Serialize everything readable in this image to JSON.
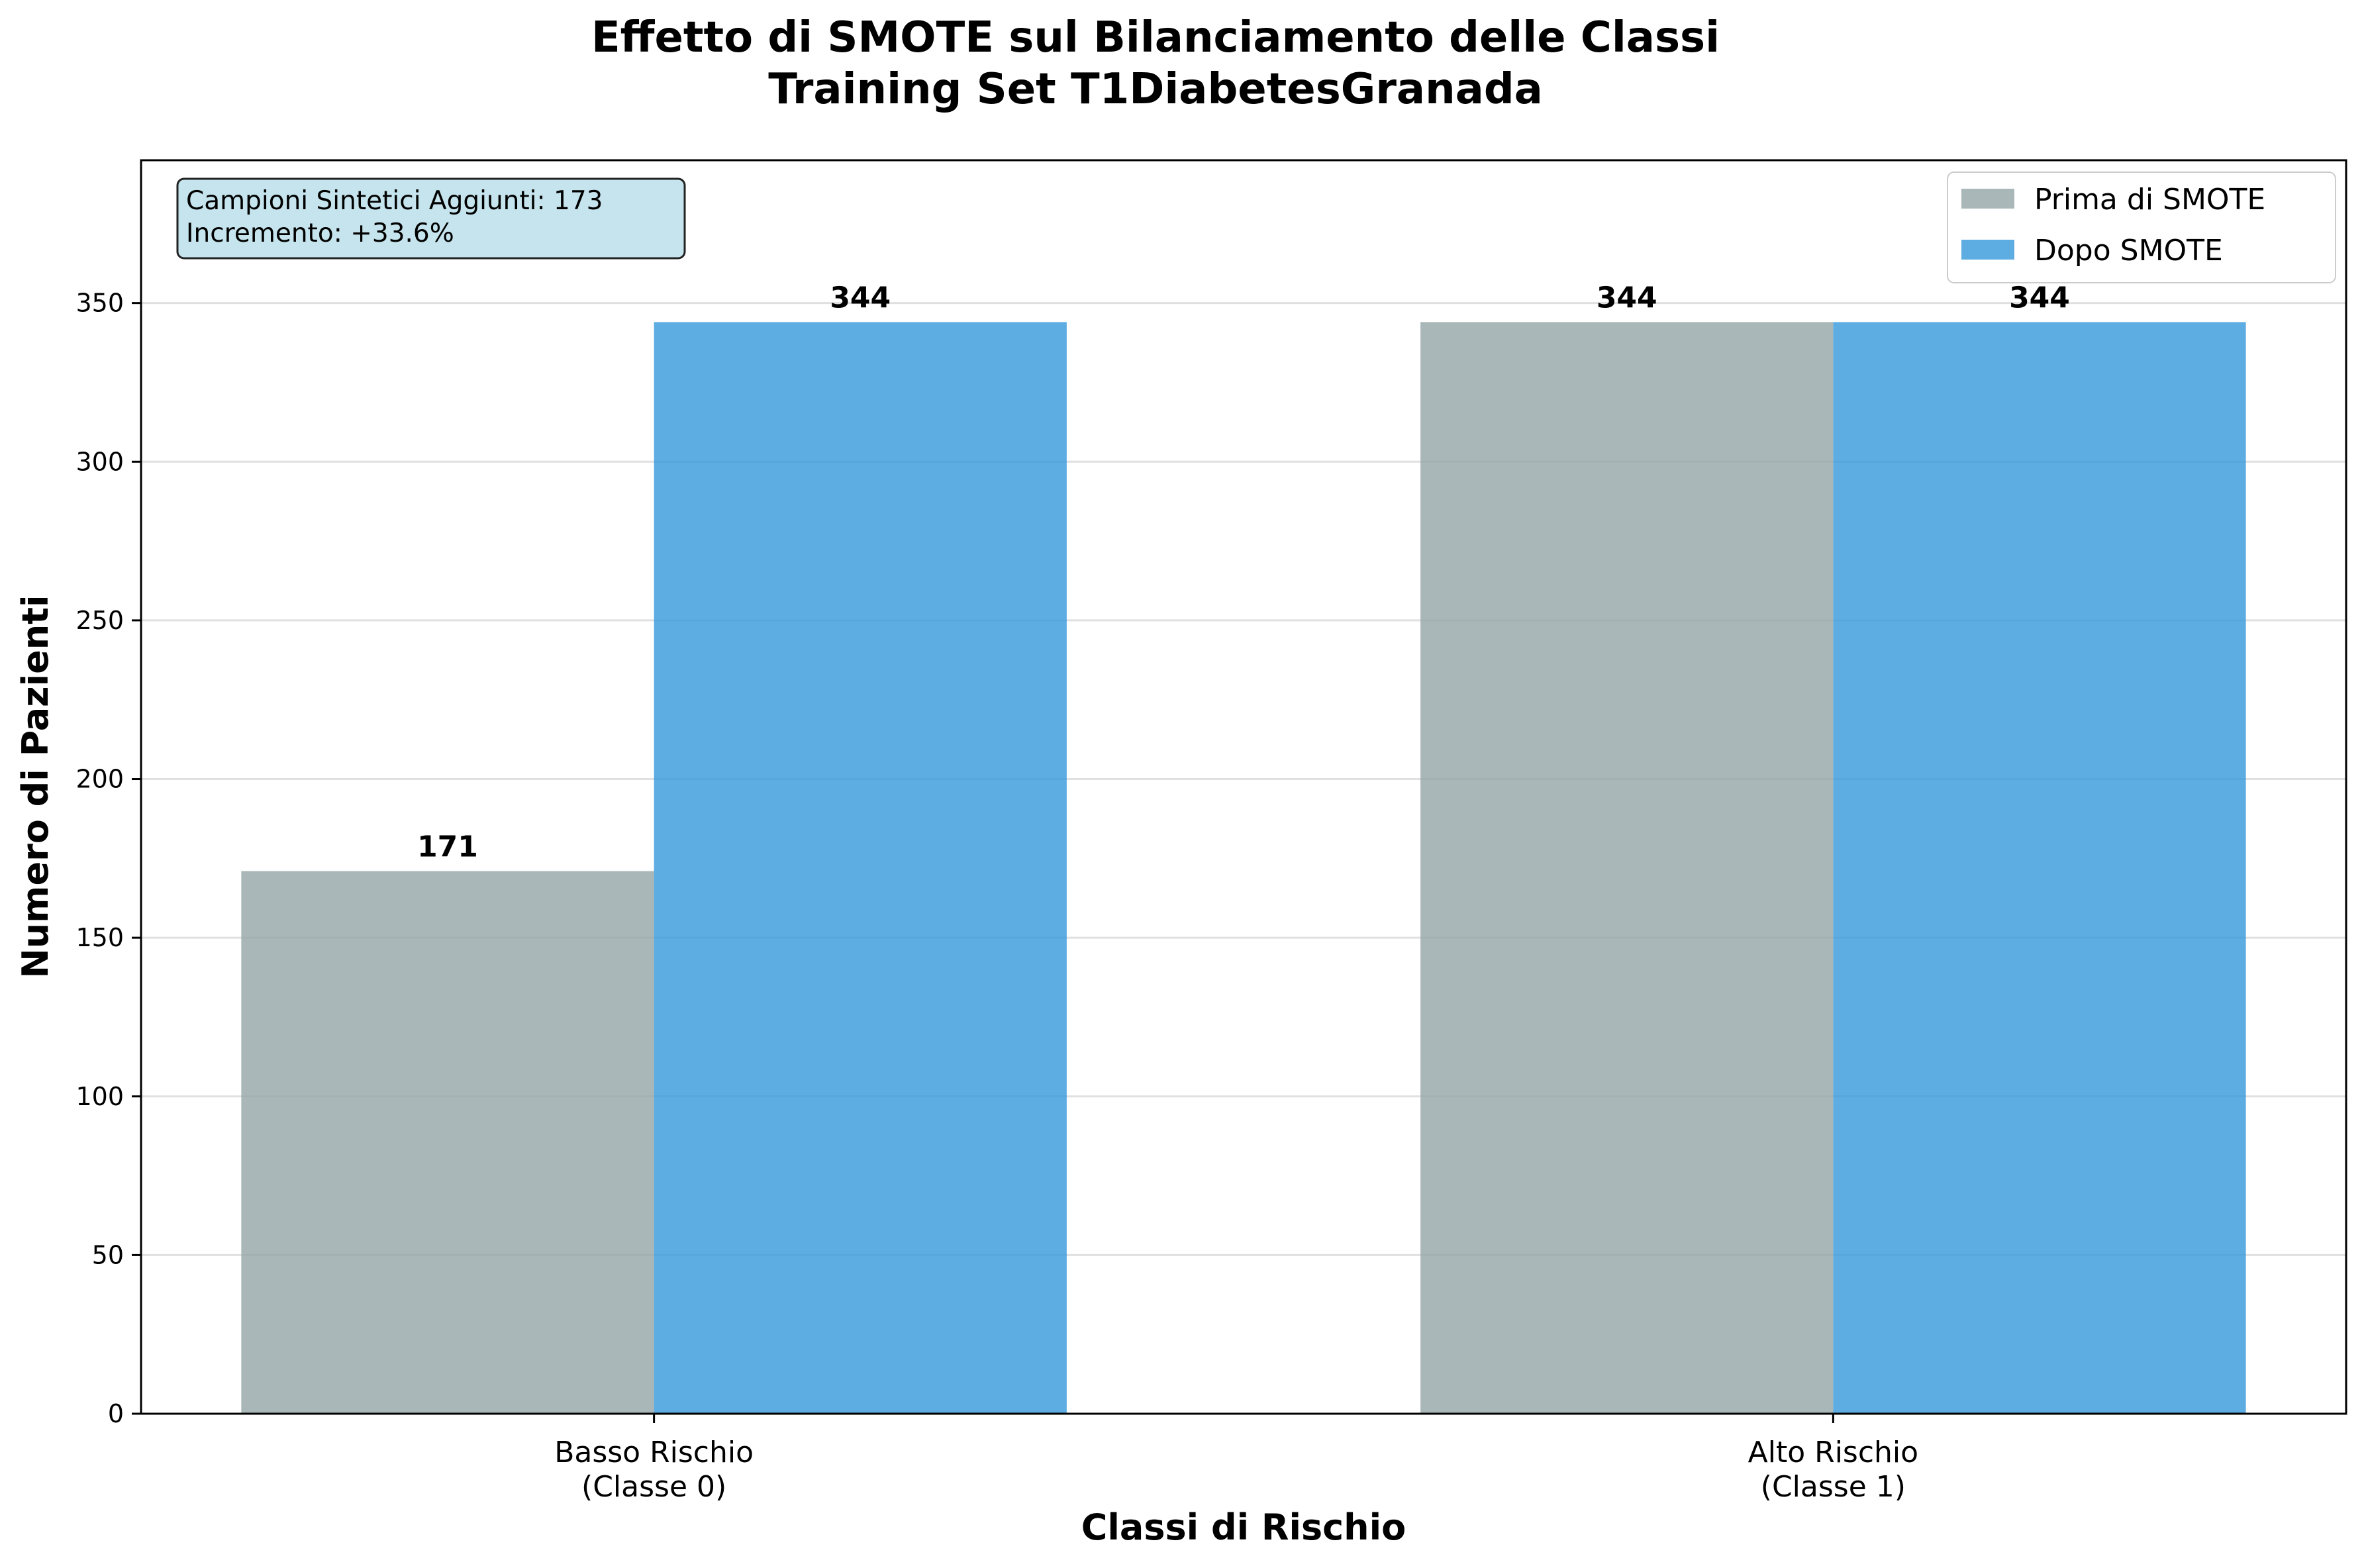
{
  "chart_data": {
    "type": "bar",
    "title": "Effetto di SMOTE sul Bilanciamento delle Classi",
    "subtitle": "Training Set T1DiabetesGranada",
    "xlabel": "Classi di Rischio",
    "ylabel": "Numero di Pazienti",
    "categories": [
      [
        "Basso Rischio",
        "(Classe 0)"
      ],
      [
        "Alto Rischio",
        "(Classe 1)"
      ]
    ],
    "series": [
      {
        "name": "Prima di SMOTE",
        "values": [
          171,
          344
        ],
        "color": "#95a5a6"
      },
      {
        "name": "Dopo SMOTE",
        "values": [
          344,
          344
        ],
        "color": "#3498db"
      }
    ],
    "ylim": [
      0,
      395
    ],
    "yticks": [
      0,
      50,
      100,
      150,
      200,
      250,
      300,
      350
    ],
    "grid": "y",
    "legend": "top-right",
    "annotation": {
      "lines": [
        "Campioni Sintetici Aggiunti: 173",
        "Incremento: +33.6%"
      ],
      "background": "#add8e6"
    }
  }
}
